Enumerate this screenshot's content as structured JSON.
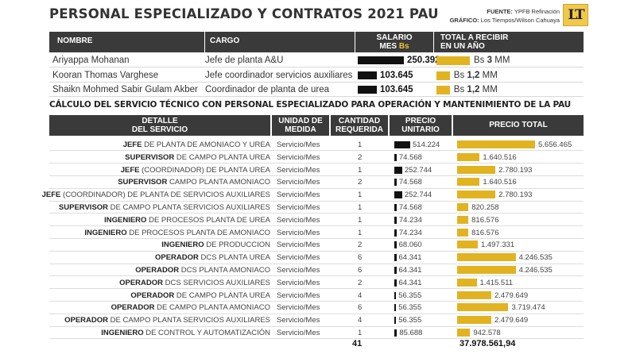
{
  "title": "PERSONAL ESPECIALIZADO Y CONTRATOS 2021 PAU",
  "source": {
    "label1": "FUENTE:",
    "text1": "YPFB Refinación",
    "label2": "GRÁFICO:",
    "text2": "Los Tiempos/Wilson Cahuaya"
  },
  "logo": "LT",
  "colors": {
    "header_bg": "#3a3a3a",
    "accent": "#e2b321",
    "bar_dark": "#111111"
  },
  "personal_header": {
    "nombre": "NOMBRE",
    "cargo": "CARGO",
    "salario_1": "SALARIO",
    "salario_2": "MES ",
    "salario_unit": "Bs",
    "total_1": "TOTAL A RECIBIR",
    "total_2": "EN UN AÑO"
  },
  "services_header": {
    "detalle_1": "DETALLE",
    "detalle_2": "DEL SERVICIO",
    "unidad_1": "UNIDAD DE",
    "unidad_2": "MEDIDA",
    "cantidad_1": "CANTIDAD",
    "cantidad_2": "REQUERIDA",
    "precio_u_1": "PRECIO",
    "precio_u_2": "UNITARIO",
    "precio_total": "PRECIO TOTAL"
  },
  "subtitle": "CÁLCULO DEL SERVICIO TÉCNICO CON PERSONAL ESPECIALIZADO PARA OPERACIÓN Y MANTENIMIENTO DE LA PAU",
  "totals": {
    "cantidad": "41",
    "precio_total": "37.978.561,94"
  },
  "chart_data": [
    {
      "type": "bar",
      "title": "PERSONAL ESPECIALIZADO Y CONTRATOS 2021 PAU",
      "categories": [
        "Ariyappa Mohanan",
        "Kooran Thomas Varghese",
        "Shaikn Mohmed Sabir Gulam Akber"
      ],
      "cargos": [
        "Jefe de planta A&U",
        "Jefe coordinador servicios auxiliares",
        "Coordinador de planta de urea"
      ],
      "series": [
        {
          "name": "SALARIO MES Bs",
          "values": [
            250392,
            103645,
            103645
          ],
          "labels": [
            "250.392",
            "103.645",
            "103.645"
          ]
        },
        {
          "name": "TOTAL A RECIBIR EN UN AÑO",
          "values": [
            3,
            1.2,
            1.2
          ],
          "labels": [
            "3",
            "1,2",
            "1,2"
          ],
          "prefix": "Bs",
          "unit": "MM"
        }
      ]
    },
    {
      "type": "bar",
      "title": "CÁLCULO DEL SERVICIO TÉCNICO CON PERSONAL ESPECIALIZADO PARA OPERACIÓN Y MANTENIMIENTO DE LA PAU",
      "rows": [
        {
          "bold": "JEFE",
          "rest": " DE PLANTA DE AMONIACO Y UREA",
          "unidad": "Servicio/Mes",
          "cantidad": 1,
          "unitario": 514224,
          "unitario_label": "514.224",
          "total": 5656465,
          "total_label": "5.656.465"
        },
        {
          "bold": "SUPERVISOR",
          "rest": " DE CAMPO PLANTA UREA",
          "unidad": "Servicio/Mes",
          "cantidad": 2,
          "unitario": 74568,
          "unitario_label": "74.568",
          "total": 1640516,
          "total_label": "1.640.516"
        },
        {
          "bold": "JEFE",
          "rest": " (COORDINADOR) DE PLANTA UREA",
          "unidad": "Servicio/Mes",
          "cantidad": 1,
          "unitario": 252744,
          "unitario_label": "252.744",
          "total": 2780193,
          "total_label": "2.780.193"
        },
        {
          "bold": "SUPERVISOR",
          "rest": " CAMPO PLANTA AMONIACO",
          "unidad": "Servicio/Mes",
          "cantidad": 2,
          "unitario": 74568,
          "unitario_label": "74.568",
          "total": 1640516,
          "total_label": "1.640.516"
        },
        {
          "bold": "JEFE",
          "rest": " (COORDINADOR) DE PLANTA DE SERVICIOS AUXILIARES",
          "unidad": "Servicio/Mes",
          "cantidad": 1,
          "unitario": 252744,
          "unitario_label": "252.744",
          "total": 2780193,
          "total_label": "2.780.193"
        },
        {
          "bold": "SUPERVISOR",
          "rest": " DE CAMPO PLANTA SERVICIOS AUXILIARES",
          "unidad": "Servicio/Mes",
          "cantidad": 1,
          "unitario": 74568,
          "unitario_label": "74.568",
          "total": 820258,
          "total_label": "820.258"
        },
        {
          "bold": "INGENIERO",
          "rest": " DE PROCESOS PLANTA DE UREA",
          "unidad": "Servicio/Mes",
          "cantidad": 1,
          "unitario": 74234,
          "unitario_label": "74.234",
          "total": 816576,
          "total_label": "816.576"
        },
        {
          "bold": "INGENIERO",
          "rest": " DE PROCESOS PLANTA DE AMONIACO",
          "unidad": "Servicio/Mes",
          "cantidad": 1,
          "unitario": 74234,
          "unitario_label": "74.234",
          "total": 816576,
          "total_label": "816.576"
        },
        {
          "bold": "INGENIERO",
          "rest": " DE PRODUCCION",
          "unidad": "Servicio/Mes",
          "cantidad": 2,
          "unitario": 68060,
          "unitario_label": "68.060",
          "total": 1497331,
          "total_label": "1.497.331"
        },
        {
          "bold": "OPERADOR",
          "rest": " DCS PLANTA UREA",
          "unidad": "Servicio/Mes",
          "cantidad": 6,
          "unitario": 64341,
          "unitario_label": "64.341",
          "total": 4246535,
          "total_label": "4.246.535"
        },
        {
          "bold": "OPERADOR",
          "rest": " DCS PLANTA AMONIACO",
          "unidad": "Servicio/Mes",
          "cantidad": 6,
          "unitario": 64341,
          "unitario_label": "64.341",
          "total": 4246535,
          "total_label": "4.246.535"
        },
        {
          "bold": "OPERADOR",
          "rest": " DCS SERVICIOS AUXILIARES",
          "unidad": "Servicio/Mes",
          "cantidad": 2,
          "unitario": 64341,
          "unitario_label": "64.341",
          "total": 1415511,
          "total_label": "1.415.511"
        },
        {
          "bold": "OPERADOR",
          "rest": " DE CAMPO PLANTA UREA",
          "unidad": "Servicio/Mes",
          "cantidad": 4,
          "unitario": 56355,
          "unitario_label": "56.355",
          "total": 2479649,
          "total_label": "2.479.649"
        },
        {
          "bold": "OPERADOR",
          "rest": " DE CAMPO PLANTA AMONIACO",
          "unidad": "Servicio/Mes",
          "cantidad": 6,
          "unitario": 56355,
          "unitario_label": "56.355",
          "total": 3719474,
          "total_label": "3.719.474"
        },
        {
          "bold": "OPERADOR",
          "rest": " DE CAMPO PLANTA SERVICIOS AUXILIARES",
          "unidad": "Servicio/Mes",
          "cantidad": 4,
          "unitario": 56355,
          "unitario_label": "56.355",
          "total": 2479649,
          "total_label": "2.479.649"
        },
        {
          "bold": "INGENIERO",
          "rest": " DE CONTROL Y AUTOMATIZACIÓN",
          "unidad": "Servicio/Mes",
          "cantidad": 1,
          "unitario": 85688,
          "unitario_label": "85.688",
          "total": 942578,
          "total_label": "942.578"
        }
      ]
    }
  ]
}
